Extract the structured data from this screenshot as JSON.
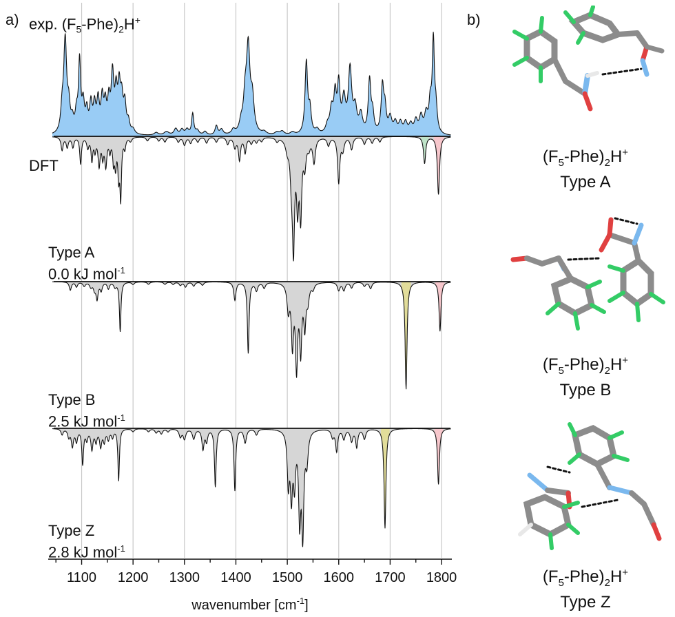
{
  "panel_a_label": "a)",
  "panel_b_label": "b)",
  "exp_label_prefix": "exp. (F",
  "exp_label_sub": "5",
  "exp_label_mid": "-Phe)",
  "exp_label_sub2": "2",
  "exp_label_end": "H",
  "exp_label_sup": "+",
  "dft_label": "DFT",
  "conformers": [
    {
      "type": "Type A",
      "energy": "0.0 kJ mol",
      "energy_sup": "-1"
    },
    {
      "type": "Type B",
      "energy": "2.5 kJ mol",
      "energy_sup": "-1"
    },
    {
      "type": "Type Z",
      "energy": "2.8 kJ mol",
      "energy_sup": "-1"
    }
  ],
  "molecules": [
    {
      "formula_pre": "(F",
      "sub1": "5",
      "mid": "-Phe)",
      "sub2": "2",
      "end": "H",
      "sup": "+",
      "type": "Type A"
    },
    {
      "formula_pre": "(F",
      "sub1": "5",
      "mid": "-Phe)",
      "sub2": "2",
      "end": "H",
      "sup": "+",
      "type": "Type B"
    },
    {
      "formula_pre": "(F",
      "sub1": "5",
      "mid": "-Phe)",
      "sub2": "2",
      "end": "H",
      "sup": "+",
      "type": "Type Z"
    }
  ],
  "colors": {
    "exp_fill": "#99ccf5",
    "gray_fill": "#d6d6d6",
    "green_fill": "#bfe3c8",
    "yellow_fill": "#e2dd9a",
    "pink_fill": "#f7c7cc",
    "gridline": "#c8c8c8",
    "line": "#111111",
    "atom_c": "#8c8c8c",
    "atom_h": "#e8e8e8",
    "atom_f": "#33cc66",
    "atom_o": "#e04040",
    "atom_n": "#7ab8ee"
  },
  "chart_data": {
    "type": "line",
    "xlabel": "wavenumber [cm",
    "xlabel_sup": "-1",
    "xlabel_end": "]",
    "xlim": [
      1035,
      1820
    ],
    "xticks": [
      1100,
      1200,
      1300,
      1400,
      1500,
      1600,
      1700,
      1800
    ],
    "grid": "vertical",
    "series": [
      {
        "name": "exp. (F5-Phe)2H+",
        "direction": "up",
        "color": "#99ccf5",
        "peaks": [
          [
            1062,
            0.22,
            3
          ],
          [
            1068,
            1.0,
            3.5
          ],
          [
            1075,
            0.25,
            3
          ],
          [
            1082,
            0.12,
            3
          ],
          [
            1090,
            0.2,
            3
          ],
          [
            1096,
            0.75,
            2.5
          ],
          [
            1103,
            0.3,
            3
          ],
          [
            1110,
            0.22,
            3
          ],
          [
            1118,
            0.3,
            3
          ],
          [
            1125,
            0.28,
            3
          ],
          [
            1132,
            0.33,
            3
          ],
          [
            1140,
            0.35,
            3
          ],
          [
            1146,
            0.28,
            3
          ],
          [
            1153,
            0.32,
            3
          ],
          [
            1160,
            0.6,
            3
          ],
          [
            1167,
            0.4,
            3
          ],
          [
            1173,
            0.45,
            3
          ],
          [
            1178,
            0.33,
            3
          ],
          [
            1184,
            0.3,
            3
          ],
          [
            1191,
            0.12,
            3
          ],
          [
            1200,
            0.05,
            4
          ],
          [
            1245,
            0.03,
            5
          ],
          [
            1265,
            0.04,
            6
          ],
          [
            1283,
            0.07,
            4
          ],
          [
            1295,
            0.06,
            4
          ],
          [
            1305,
            0.06,
            4
          ],
          [
            1316,
            0.23,
            2.5
          ],
          [
            1325,
            0.05,
            4
          ],
          [
            1340,
            0.04,
            4
          ],
          [
            1362,
            0.1,
            3
          ],
          [
            1372,
            0.06,
            4
          ],
          [
            1395,
            0.05,
            4
          ],
          [
            1410,
            0.1,
            4
          ],
          [
            1418,
            0.35,
            4
          ],
          [
            1424,
            0.88,
            4
          ],
          [
            1432,
            0.35,
            4
          ],
          [
            1455,
            0.03,
            5
          ],
          [
            1480,
            0.03,
            5
          ],
          [
            1490,
            0.04,
            5
          ],
          [
            1510,
            0.03,
            5
          ],
          [
            1537,
            0.78,
            3
          ],
          [
            1544,
            0.25,
            3
          ],
          [
            1558,
            0.05,
            4
          ],
          [
            1578,
            0.08,
            4
          ],
          [
            1586,
            0.25,
            4
          ],
          [
            1593,
            0.38,
            3
          ],
          [
            1600,
            0.5,
            3
          ],
          [
            1610,
            0.35,
            4
          ],
          [
            1622,
            0.68,
            4
          ],
          [
            1632,
            0.25,
            4
          ],
          [
            1643,
            0.2,
            4
          ],
          [
            1660,
            0.57,
            3
          ],
          [
            1666,
            0.2,
            3
          ],
          [
            1685,
            0.5,
            3
          ],
          [
            1690,
            0.25,
            3
          ],
          [
            1700,
            0.17,
            4
          ],
          [
            1710,
            0.12,
            4
          ],
          [
            1720,
            0.12,
            4
          ],
          [
            1730,
            0.12,
            4
          ],
          [
            1740,
            0.1,
            4
          ],
          [
            1750,
            0.14,
            4
          ],
          [
            1760,
            0.18,
            4
          ],
          [
            1770,
            0.2,
            4
          ],
          [
            1778,
            0.3,
            3
          ],
          [
            1784,
            0.97,
            2.5
          ],
          [
            1789,
            0.25,
            3
          ]
        ],
        "highlight_fills": []
      },
      {
        "name": "DFT",
        "direction": "down",
        "color": "#d6d6d6",
        "peaks": [
          [
            1062,
            0.13,
            2.5
          ],
          [
            1072,
            0.1,
            2.5
          ],
          [
            1083,
            0.1,
            2.5
          ],
          [
            1098,
            0.26,
            2
          ],
          [
            1112,
            0.1,
            2.5
          ],
          [
            1120,
            0.22,
            2
          ],
          [
            1126,
            0.12,
            2
          ],
          [
            1134,
            0.27,
            2.5
          ],
          [
            1141,
            0.17,
            2
          ],
          [
            1147,
            0.27,
            2.5
          ],
          [
            1155,
            0.12,
            2
          ],
          [
            1162,
            0.22,
            2
          ],
          [
            1166,
            0.25,
            2
          ],
          [
            1172,
            0.35,
            2
          ],
          [
            1176,
            0.56,
            1.8
          ],
          [
            1184,
            0.1,
            2
          ],
          [
            1195,
            0.04,
            3
          ],
          [
            1228,
            0.04,
            3
          ],
          [
            1250,
            0.04,
            3
          ],
          [
            1262,
            0.05,
            3
          ],
          [
            1288,
            0.05,
            3
          ],
          [
            1300,
            0.08,
            3
          ],
          [
            1312,
            0.06,
            3
          ],
          [
            1326,
            0.05,
            3
          ],
          [
            1343,
            0.06,
            3
          ],
          [
            1362,
            0.05,
            3
          ],
          [
            1384,
            0.07,
            3
          ],
          [
            1398,
            0.1,
            3
          ],
          [
            1407,
            0.22,
            2.5
          ],
          [
            1418,
            0.15,
            2.5
          ],
          [
            1430,
            0.06,
            3
          ],
          [
            1440,
            0.05,
            3
          ],
          [
            1450,
            0.04,
            3
          ],
          [
            1480,
            0.04,
            3
          ],
          [
            1500,
            0.1,
            4
          ],
          [
            1508,
            0.32,
            3
          ],
          [
            1512,
            1.0,
            2.5
          ],
          [
            1520,
            0.6,
            2.5
          ],
          [
            1526,
            0.72,
            2.5
          ],
          [
            1534,
            0.25,
            3
          ],
          [
            1542,
            0.08,
            3
          ],
          [
            1552,
            0.24,
            3
          ],
          [
            1580,
            0.08,
            3
          ],
          [
            1600,
            0.44,
            2.5
          ],
          [
            1608,
            0.12,
            3
          ],
          [
            1625,
            0.12,
            3
          ],
          [
            1650,
            0.07,
            3
          ],
          [
            1665,
            0.06,
            3
          ],
          [
            1680,
            0.05,
            3
          ],
          [
            1767,
            0.26,
            2.5
          ],
          [
            1794,
            0.56,
            2.5
          ]
        ],
        "highlight_fills": [
          {
            "range": [
              1490,
              1545
            ],
            "color": "#d6d6d6"
          },
          {
            "range": [
              1760,
              1775
            ],
            "color": "#bfe3c8"
          },
          {
            "range": [
              1785,
              1805
            ],
            "color": "#f7c7cc"
          }
        ]
      },
      {
        "name": "Type A",
        "direction": "down",
        "color": "#d6d6d6",
        "peaks": [
          [
            1078,
            0.1,
            2.5
          ],
          [
            1090,
            0.06,
            2.5
          ],
          [
            1105,
            0.05,
            3
          ],
          [
            1118,
            0.06,
            3
          ],
          [
            1125,
            0.08,
            2.5
          ],
          [
            1130,
            0.2,
            2.5
          ],
          [
            1138,
            0.1,
            2.5
          ],
          [
            1152,
            0.08,
            2.5
          ],
          [
            1165,
            0.06,
            3
          ],
          [
            1175,
            0.6,
            1.8
          ],
          [
            1200,
            0.03,
            3
          ],
          [
            1230,
            0.03,
            3
          ],
          [
            1262,
            0.03,
            3
          ],
          [
            1278,
            0.03,
            3
          ],
          [
            1292,
            0.04,
            3
          ],
          [
            1302,
            0.06,
            3
          ],
          [
            1318,
            0.05,
            3
          ],
          [
            1335,
            0.04,
            3
          ],
          [
            1398,
            0.22,
            2.5
          ],
          [
            1424,
            0.86,
            2
          ],
          [
            1440,
            0.1,
            3
          ],
          [
            1455,
            0.07,
            3
          ],
          [
            1502,
            0.32,
            3
          ],
          [
            1510,
            0.72,
            2.5
          ],
          [
            1518,
            1.0,
            2.5
          ],
          [
            1526,
            0.8,
            2.5
          ],
          [
            1534,
            0.5,
            2.5
          ],
          [
            1540,
            0.2,
            3
          ],
          [
            1550,
            0.07,
            3
          ],
          [
            1600,
            0.1,
            3
          ],
          [
            1610,
            0.1,
            3
          ],
          [
            1625,
            0.07,
            3
          ],
          [
            1650,
            0.05,
            3
          ],
          [
            1662,
            0.08,
            3
          ],
          [
            1731,
            1.3,
            2.2
          ],
          [
            1797,
            0.6,
            2.2
          ]
        ],
        "highlight_fills": [
          {
            "range": [
              1490,
              1545
            ],
            "color": "#d6d6d6"
          },
          {
            "range": [
              1722,
              1740
            ],
            "color": "#e2dd9a"
          },
          {
            "range": [
              1788,
              1806
            ],
            "color": "#f7c7cc"
          }
        ]
      },
      {
        "name": "Type B",
        "direction": "down",
        "color": "#d6d6d6",
        "peaks": [
          [
            1062,
            0.06,
            2.5
          ],
          [
            1075,
            0.08,
            2.5
          ],
          [
            1082,
            0.17,
            2.5
          ],
          [
            1090,
            0.12,
            2.5
          ],
          [
            1102,
            0.35,
            2
          ],
          [
            1110,
            0.1,
            2.5
          ],
          [
            1120,
            0.2,
            2.5
          ],
          [
            1128,
            0.12,
            2.5
          ],
          [
            1137,
            0.17,
            2.5
          ],
          [
            1144,
            0.12,
            2.5
          ],
          [
            1152,
            0.1,
            2.5
          ],
          [
            1160,
            0.08,
            2.5
          ],
          [
            1172,
            0.52,
            1.8
          ],
          [
            1200,
            0.03,
            3
          ],
          [
            1230,
            0.03,
            3
          ],
          [
            1245,
            0.04,
            3
          ],
          [
            1255,
            0.05,
            3
          ],
          [
            1268,
            0.03,
            3
          ],
          [
            1292,
            0.08,
            3
          ],
          [
            1300,
            0.1,
            3
          ],
          [
            1318,
            0.1,
            3
          ],
          [
            1336,
            0.2,
            2.5
          ],
          [
            1343,
            0.12,
            2.5
          ],
          [
            1360,
            0.58,
            2
          ],
          [
            1398,
            0.62,
            2
          ],
          [
            1418,
            0.14,
            3
          ],
          [
            1440,
            0.06,
            3
          ],
          [
            1502,
            0.52,
            2.5
          ],
          [
            1508,
            0.62,
            2.5
          ],
          [
            1514,
            0.5,
            2.5
          ],
          [
            1524,
            0.85,
            2.5
          ],
          [
            1530,
            1.0,
            2.5
          ],
          [
            1538,
            0.3,
            3
          ],
          [
            1588,
            0.08,
            3
          ],
          [
            1596,
            0.22,
            2.5
          ],
          [
            1610,
            0.1,
            3
          ],
          [
            1625,
            0.12,
            3
          ],
          [
            1635,
            0.18,
            2.5
          ],
          [
            1650,
            0.1,
            3
          ],
          [
            1690,
            1.0,
            2.2
          ],
          [
            1794,
            0.56,
            2.2
          ]
        ],
        "highlight_fills": [
          {
            "range": [
              1495,
              1545
            ],
            "color": "#d6d6d6"
          },
          {
            "range": [
              1682,
              1699
            ],
            "color": "#e2dd9a"
          },
          {
            "range": [
              1786,
              1803
            ],
            "color": "#f7c7cc"
          }
        ]
      }
    ]
  }
}
